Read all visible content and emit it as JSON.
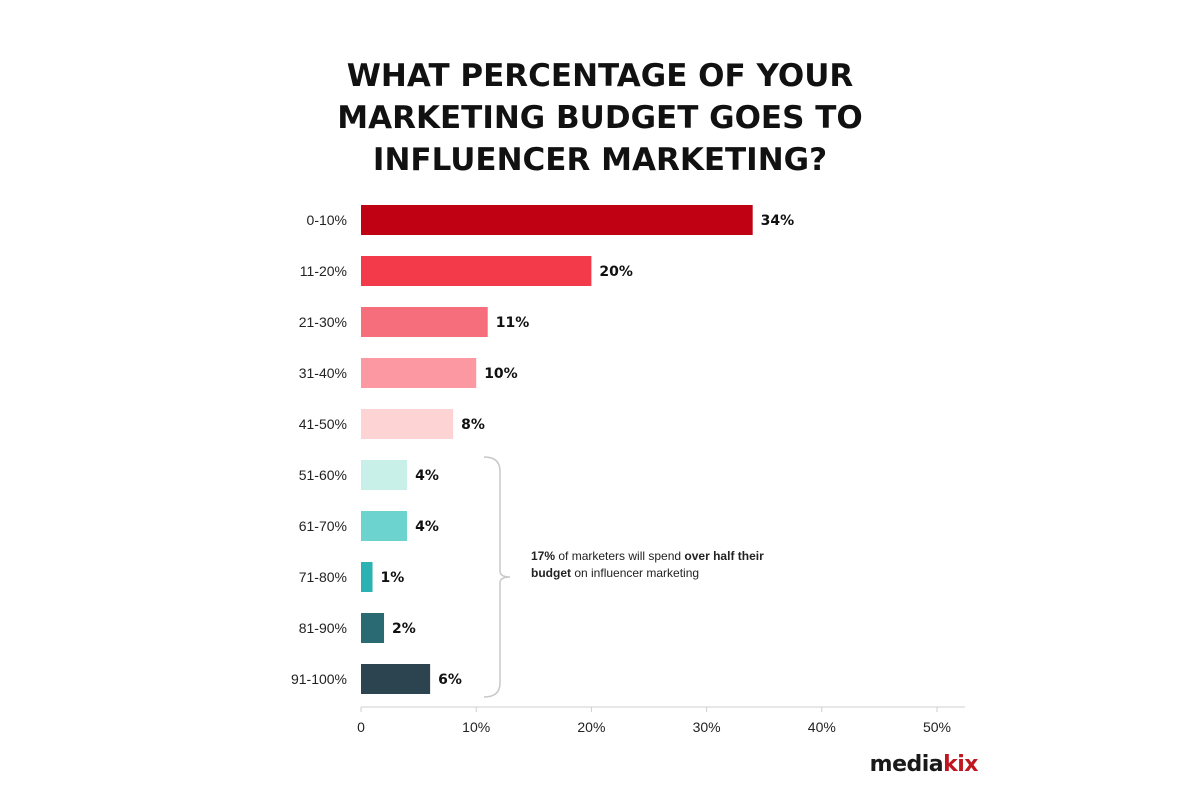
{
  "chart_data": {
    "type": "bar",
    "orientation": "horizontal",
    "title": [
      "WHAT PERCENTAGE OF YOUR",
      "MARKETING BUDGET GOES TO",
      "INFLUENCER MARKETING?"
    ],
    "categories": [
      "0-10%",
      "11-20%",
      "21-30%",
      "31-40%",
      "41-50%",
      "51-60%",
      "61-70%",
      "71-80%",
      "81-90%",
      "91-100%"
    ],
    "values": [
      34,
      20,
      11,
      10,
      8,
      4,
      4,
      1,
      2,
      6
    ],
    "value_labels": [
      "34%",
      "20%",
      "11%",
      "10%",
      "8%",
      "4%",
      "4%",
      "1%",
      "2%",
      "6%"
    ],
    "colors": [
      "#c00013",
      "#f23a4b",
      "#f66d7b",
      "#fb98a2",
      "#fed3d3",
      "#c9efe9",
      "#6dd3cf",
      "#2bb3b4",
      "#2a6a72",
      "#2b444f"
    ],
    "xlim": [
      0,
      50
    ],
    "xticks": [
      0,
      10,
      20,
      30,
      40,
      50
    ],
    "xtick_labels": [
      "0",
      "10%",
      "20%",
      "30%",
      "40%",
      "50%"
    ],
    "grid": false,
    "bracket_range": [
      "51-60%",
      "91-100%"
    ],
    "annotation": {
      "bold1": "17%",
      "text1": " of marketers will spend ",
      "bold2": "over half their budget",
      "text2": " on influencer marketing"
    }
  },
  "brand": {
    "part1": "media",
    "part2": "kix",
    "color_dark": "#1a1a1a",
    "color_accent": "#c0161f"
  }
}
